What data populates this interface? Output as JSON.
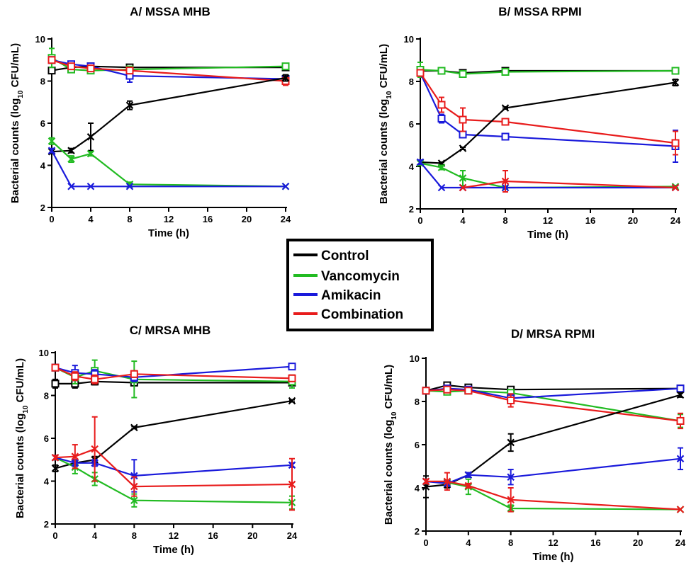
{
  "chart_data": [
    {
      "title": "A/ MSSA MHB",
      "type": "line",
      "xlabel": "Time (h)",
      "ylabel_main": "Bacterial counts (log",
      "ylabel_sub": "10",
      "ylabel_end": " CFU/mL)",
      "xlim": [
        0,
        24
      ],
      "ylim": [
        2,
        10
      ],
      "xticks": [
        "0",
        "4",
        "8",
        "12",
        "16",
        "20",
        "24"
      ],
      "yticks": [
        "2",
        "4",
        "6",
        "8",
        "10"
      ],
      "series": [
        {
          "name": "Control",
          "group": "high",
          "marker": "square",
          "color": "#000000",
          "x": [
            0,
            2,
            4,
            8,
            24
          ],
          "y": [
            8.5,
            8.65,
            8.7,
            8.65,
            8.65
          ],
          "err": [
            0.1,
            0.05,
            0.05,
            0.05,
            0.05
          ]
        },
        {
          "name": "Vancomycin",
          "group": "high",
          "marker": "square",
          "color": "#22bb22",
          "x": [
            0,
            2,
            4,
            8,
            24
          ],
          "y": [
            9.1,
            8.55,
            8.5,
            8.55,
            8.7
          ],
          "err": [
            0.45,
            0.05,
            0.05,
            0.05,
            0.1
          ]
        },
        {
          "name": "Amikacin",
          "group": "high",
          "marker": "square",
          "color": "#1a1adb",
          "x": [
            0,
            2,
            4,
            8,
            24
          ],
          "y": [
            9.0,
            8.8,
            8.7,
            8.25,
            8.1
          ],
          "err": [
            0.1,
            0.1,
            0.1,
            0.3,
            0.1
          ]
        },
        {
          "name": "Combination",
          "group": "high",
          "marker": "square",
          "color": "#e81c1c",
          "x": [
            0,
            2,
            4,
            8,
            24
          ],
          "y": [
            9.0,
            8.7,
            8.6,
            8.5,
            8.0
          ],
          "err": [
            0.1,
            0.1,
            0.1,
            0.15,
            0.2
          ]
        },
        {
          "name": "Control",
          "group": "low",
          "marker": "x",
          "color": "#000000",
          "x": [
            0,
            2,
            4,
            8,
            24
          ],
          "y": [
            4.65,
            4.7,
            5.35,
            6.85,
            8.15
          ],
          "err": [
            0.1,
            0.1,
            0.65,
            0.2,
            0.15
          ]
        },
        {
          "name": "Vancomycin",
          "group": "low",
          "marker": "x",
          "color": "#22bb22",
          "x": [
            0,
            2,
            4,
            8,
            24
          ],
          "y": [
            5.15,
            4.3,
            4.55,
            3.1,
            3.0
          ],
          "err": [
            0.15,
            0.15,
            0.1,
            0.1,
            0.0
          ]
        },
        {
          "name": "Amikacin",
          "group": "low",
          "marker": "x",
          "color": "#1a1adb",
          "x": [
            0,
            2,
            4,
            8,
            24
          ],
          "y": [
            4.7,
            3.0,
            3.0,
            3.0,
            3.0
          ],
          "err": [
            0.1,
            0,
            0,
            0,
            0
          ]
        }
      ]
    },
    {
      "title": "B/ MSSA RPMI",
      "type": "line",
      "xlabel": "Time (h)",
      "ylabel_main": "Bacterial counts (log",
      "ylabel_sub": "10",
      "ylabel_end": " CFU/mL)",
      "xlim": [
        0,
        24
      ],
      "ylim": [
        2,
        10
      ],
      "xticks": [
        "0",
        "4",
        "8",
        "12",
        "16",
        "20",
        "24"
      ],
      "yticks": [
        "2",
        "4",
        "6",
        "8",
        "10"
      ],
      "series": [
        {
          "name": "Control",
          "group": "high",
          "marker": "square",
          "color": "#000000",
          "x": [
            0,
            2,
            4,
            8,
            24
          ],
          "y": [
            8.5,
            8.5,
            8.4,
            8.5,
            8.5
          ],
          "err": [
            0.1,
            0.1,
            0.1,
            0.1,
            0.1
          ]
        },
        {
          "name": "Vancomycin",
          "group": "high",
          "marker": "square",
          "color": "#22bb22",
          "x": [
            0,
            2,
            4,
            8,
            24
          ],
          "y": [
            8.55,
            8.5,
            8.35,
            8.45,
            8.5
          ],
          "err": [
            0.35,
            0.1,
            0.15,
            0.1,
            0.05
          ]
        },
        {
          "name": "Amikacin",
          "group": "high",
          "marker": "square",
          "color": "#1a1adb",
          "x": [
            0,
            2,
            4,
            8,
            24
          ],
          "y": [
            8.4,
            6.25,
            5.5,
            5.4,
            4.95
          ],
          "err": [
            0.1,
            0.2,
            0.1,
            0.1,
            0.75
          ]
        },
        {
          "name": "Combination",
          "group": "high",
          "marker": "square",
          "color": "#e81c1c",
          "x": [
            0,
            2,
            4,
            8,
            24
          ],
          "y": [
            8.4,
            6.9,
            6.2,
            6.1,
            5.1
          ],
          "err": [
            0.1,
            0.35,
            0.55,
            0.1,
            0.55
          ]
        },
        {
          "name": "Control",
          "group": "low",
          "marker": "x",
          "color": "#000000",
          "x": [
            0,
            2,
            4,
            8,
            24
          ],
          "y": [
            4.2,
            4.15,
            4.85,
            6.75,
            7.95
          ],
          "err": [
            0.1,
            0.05,
            0.05,
            0.05,
            0.15
          ]
        },
        {
          "name": "Vancomycin",
          "group": "low",
          "marker": "x",
          "color": "#22bb22",
          "x": [
            0,
            2,
            4,
            8,
            24
          ],
          "y": [
            4.15,
            3.95,
            3.45,
            3.0,
            3.05
          ],
          "err": [
            0.1,
            0.1,
            0.35,
            0.05,
            0.05
          ]
        },
        {
          "name": "Amikacin",
          "group": "low",
          "marker": "x",
          "color": "#1a1adb",
          "x": [
            0,
            2,
            4,
            8,
            24
          ],
          "y": [
            4.2,
            3.0,
            3.0,
            3.0,
            3.0
          ],
          "err": [
            0.1,
            0,
            0,
            0,
            0
          ]
        },
        {
          "name": "Combination",
          "group": "low",
          "marker": "x",
          "color": "#e81c1c",
          "x": [
            4,
            8,
            24
          ],
          "y": [
            3.0,
            3.3,
            3.0
          ],
          "err": [
            0,
            0.5,
            0
          ]
        }
      ]
    },
    {
      "title": "C/ MRSA MHB",
      "type": "line",
      "xlabel": "Time (h)",
      "ylabel_main": "Bacterial counts (log",
      "ylabel_sub": "10",
      "ylabel_end": " CFU/mL)",
      "xlim": [
        0,
        24
      ],
      "ylim": [
        2,
        10
      ],
      "xticks": [
        "0",
        "4",
        "8",
        "12",
        "16",
        "20",
        "24"
      ],
      "yticks": [
        "2",
        "4",
        "6",
        "8",
        "10"
      ],
      "series": [
        {
          "name": "Control",
          "group": "high",
          "marker": "square",
          "color": "#000000",
          "x": [
            0,
            2,
            4,
            8,
            24
          ],
          "y": [
            8.55,
            8.55,
            8.65,
            8.6,
            8.6
          ],
          "err": [
            0.2,
            0.2,
            0.15,
            0.05,
            0.05
          ]
        },
        {
          "name": "Vancomycin",
          "group": "high",
          "marker": "square",
          "color": "#22bb22",
          "x": [
            0,
            2,
            4,
            8,
            24
          ],
          "y": [
            9.3,
            8.85,
            9.15,
            8.75,
            8.65
          ],
          "err": [
            0.1,
            0.3,
            0.5,
            0.85,
            0.3
          ]
        },
        {
          "name": "Amikacin",
          "group": "high",
          "marker": "square",
          "color": "#1a1adb",
          "x": [
            0,
            2,
            4,
            8,
            24
          ],
          "y": [
            9.3,
            9.05,
            9.0,
            8.85,
            9.35
          ],
          "err": [
            0.1,
            0.35,
            0.2,
            0.2,
            0.1
          ]
        },
        {
          "name": "Combination",
          "group": "high",
          "marker": "square",
          "color": "#e81c1c",
          "x": [
            0,
            2,
            4,
            8,
            24
          ],
          "y": [
            9.3,
            8.9,
            8.75,
            9.0,
            8.8
          ],
          "err": [
            0.1,
            0.2,
            0.2,
            0.15,
            0.15
          ]
        },
        {
          "name": "Control",
          "group": "low",
          "marker": "x",
          "color": "#000000",
          "x": [
            0,
            2,
            4,
            8,
            24
          ],
          "y": [
            4.6,
            4.85,
            5.0,
            6.5,
            7.75
          ],
          "err": [
            0.15,
            0.1,
            0.15,
            0.05,
            0.05
          ]
        },
        {
          "name": "Vancomycin",
          "group": "low",
          "marker": "x",
          "color": "#22bb22",
          "x": [
            0,
            2,
            4,
            8,
            24
          ],
          "y": [
            5.1,
            4.65,
            4.1,
            3.1,
            3.0
          ],
          "err": [
            0.1,
            0.3,
            0.3,
            0.3,
            0.3
          ]
        },
        {
          "name": "Amikacin",
          "group": "low",
          "marker": "x",
          "color": "#1a1adb",
          "x": [
            0,
            2,
            4,
            8,
            24
          ],
          "y": [
            5.1,
            4.85,
            4.85,
            4.25,
            4.75
          ],
          "err": [
            0.1,
            0.15,
            0.15,
            0.75,
            0.1
          ]
        },
        {
          "name": "Combination",
          "group": "low",
          "marker": "x",
          "color": "#e81c1c",
          "x": [
            0,
            2,
            4,
            8,
            24
          ],
          "y": [
            5.1,
            5.15,
            5.5,
            3.75,
            3.85
          ],
          "err": [
            0.1,
            0.55,
            1.5,
            0.45,
            1.2
          ]
        }
      ]
    },
    {
      "title": "D/ MRSA RPMI",
      "type": "line",
      "xlabel": "Time (h)",
      "ylabel_main": "Bacterial counts (log",
      "ylabel_sub": "10",
      "ylabel_end": " CFU/mL)",
      "xlim": [
        0,
        24
      ],
      "ylim": [
        2,
        10
      ],
      "xticks": [
        "0",
        "4",
        "8",
        "12",
        "16",
        "20",
        "24"
      ],
      "yticks": [
        "2",
        "4",
        "6",
        "8",
        "10"
      ],
      "series": [
        {
          "name": "Control",
          "group": "high",
          "marker": "square",
          "color": "#000000",
          "x": [
            0,
            2,
            4,
            8,
            24
          ],
          "y": [
            8.5,
            8.75,
            8.65,
            8.55,
            8.6
          ],
          "err": [
            0.1,
            0.1,
            0.1,
            0.1,
            0.05
          ]
        },
        {
          "name": "Vancomycin",
          "group": "high",
          "marker": "square",
          "color": "#22bb22",
          "x": [
            0,
            2,
            4,
            8,
            24
          ],
          "y": [
            8.5,
            8.45,
            8.5,
            8.4,
            7.1
          ],
          "err": [
            0.1,
            0.1,
            0.1,
            0.1,
            0.3
          ]
        },
        {
          "name": "Amikacin",
          "group": "high",
          "marker": "square",
          "color": "#1a1adb",
          "x": [
            0,
            2,
            4,
            8,
            24
          ],
          "y": [
            8.5,
            8.6,
            8.55,
            8.15,
            8.6
          ],
          "err": [
            0.1,
            0.1,
            0.1,
            0.2,
            0.05
          ]
        },
        {
          "name": "Combination",
          "group": "high",
          "marker": "square",
          "color": "#e81c1c",
          "x": [
            0,
            2,
            4,
            8,
            24
          ],
          "y": [
            8.5,
            8.55,
            8.5,
            8.05,
            7.1
          ],
          "err": [
            0.1,
            0.1,
            0.1,
            0.3,
            0.35
          ]
        },
        {
          "name": "Control",
          "group": "low",
          "marker": "x",
          "color": "#000000",
          "x": [
            0,
            2,
            4,
            8,
            24
          ],
          "y": [
            4.05,
            4.15,
            4.6,
            6.1,
            8.3
          ],
          "err": [
            0.5,
            0.15,
            0.1,
            0.4,
            0.1
          ]
        },
        {
          "name": "Vancomycin",
          "group": "low",
          "marker": "x",
          "color": "#22bb22",
          "x": [
            0,
            2,
            4,
            8,
            24
          ],
          "y": [
            4.3,
            4.25,
            4.05,
            3.05,
            3.0
          ],
          "err": [
            0.1,
            0.1,
            0.35,
            0.15,
            0.0
          ]
        },
        {
          "name": "Amikacin",
          "group": "low",
          "marker": "x",
          "color": "#1a1adb",
          "x": [
            0,
            2,
            4,
            8,
            24
          ],
          "y": [
            4.3,
            4.2,
            4.6,
            4.5,
            5.35
          ],
          "err": [
            0.1,
            0.1,
            0.1,
            0.35,
            0.5
          ]
        },
        {
          "name": "Combination",
          "group": "low",
          "marker": "x",
          "color": "#e81c1c",
          "x": [
            0,
            2,
            4,
            8,
            24
          ],
          "y": [
            4.3,
            4.3,
            4.1,
            3.45,
            3.0
          ],
          "err": [
            0.1,
            0.4,
            0.1,
            0.55,
            0.0
          ]
        }
      ]
    }
  ],
  "legend": {
    "items": [
      {
        "label": "Control",
        "color": "#000000"
      },
      {
        "label": "Vancomycin",
        "color": "#22bb22"
      },
      {
        "label": "Amikacin",
        "color": "#1a1adb"
      },
      {
        "label": "Combination",
        "color": "#e81c1c"
      }
    ]
  }
}
